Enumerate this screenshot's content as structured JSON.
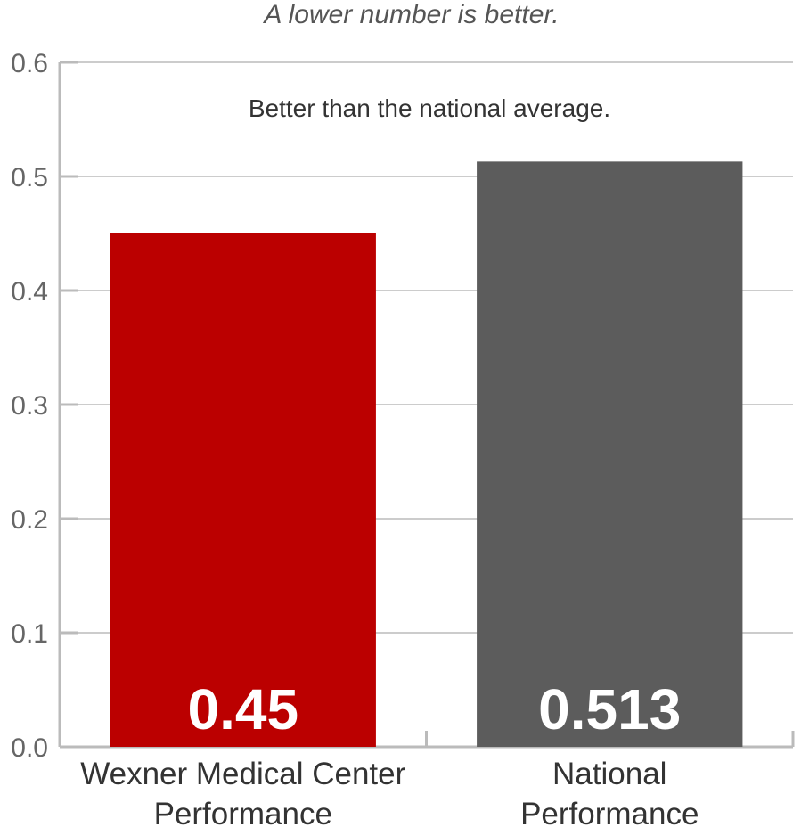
{
  "chart_data": {
    "type": "bar",
    "subtitle": "A lower number is better.",
    "annotation": "Better than the national average.",
    "categories": [
      "Wexner Medical Center Performance",
      "National Performance"
    ],
    "category_lines": [
      [
        "Wexner Medical Center",
        "Performance"
      ],
      [
        "National",
        "Performance"
      ]
    ],
    "values": [
      0.45,
      0.513
    ],
    "value_labels": [
      "0.45",
      "0.513"
    ],
    "bar_colors": [
      "#bb0000",
      "#5c5c5c"
    ],
    "y_ticks": [
      "0.0",
      "0.1",
      "0.2",
      "0.3",
      "0.4",
      "0.5",
      "0.6"
    ],
    "ylim": [
      0,
      0.6
    ],
    "grid": true,
    "xlabel": "",
    "ylabel": ""
  }
}
